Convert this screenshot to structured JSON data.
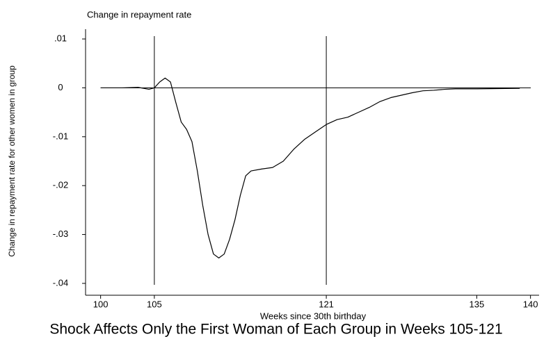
{
  "chart_data": {
    "type": "line",
    "y_axis_title": "Change in repayment rate",
    "y_label": "Change in repayment rate for other women in group",
    "x_label": "Weeks since 30th birthday",
    "caption": "Shock Affects Only the First Woman of Each Group in Weeks 105-121",
    "x": [
      100,
      102,
      103.5,
      104.5,
      105,
      105.5,
      106,
      106.5,
      107,
      107.5,
      108,
      108.5,
      109,
      109.5,
      110,
      110.5,
      111,
      111.5,
      112,
      112.5,
      113,
      113.5,
      114,
      115,
      116,
      117,
      118,
      119,
      120,
      121,
      122,
      123,
      124,
      125,
      126,
      127,
      128,
      129,
      130,
      131,
      132,
      133,
      135,
      139
    ],
    "series": [
      {
        "name": "Change in repayment rate",
        "color": "#000000",
        "values": [
          0,
          0,
          0.0001,
          -0.0003,
          0,
          0.0012,
          0.002,
          0.0012,
          -0.003,
          -0.007,
          -0.0085,
          -0.011,
          -0.017,
          -0.024,
          -0.03,
          -0.034,
          -0.0348,
          -0.034,
          -0.031,
          -0.027,
          -0.022,
          -0.018,
          -0.017,
          -0.0166,
          -0.0163,
          -0.015,
          -0.0125,
          -0.0105,
          -0.009,
          -0.0075,
          -0.0065,
          -0.006,
          -0.005,
          -0.004,
          -0.0028,
          -0.002,
          -0.0015,
          -0.001,
          -0.0006,
          -0.0005,
          -0.0003,
          -0.0002,
          -0.0002,
          -0.0001
        ]
      }
    ],
    "xlim": [
      98.6,
      140.8
    ],
    "ylim": [
      -0.042,
      0.012
    ],
    "xticks": [
      100,
      105,
      121,
      135,
      140
    ],
    "yticks": [
      {
        "value": 0.01,
        "label": ".01"
      },
      0,
      {
        "value": -0.01,
        "label": "-.01"
      },
      {
        "value": -0.02,
        "label": "-.02"
      },
      {
        "value": -0.03,
        "label": "-.03"
      },
      {
        "value": -0.04,
        "label": "-.04"
      }
    ],
    "vlines": [
      105,
      121
    ],
    "hline": 0
  }
}
